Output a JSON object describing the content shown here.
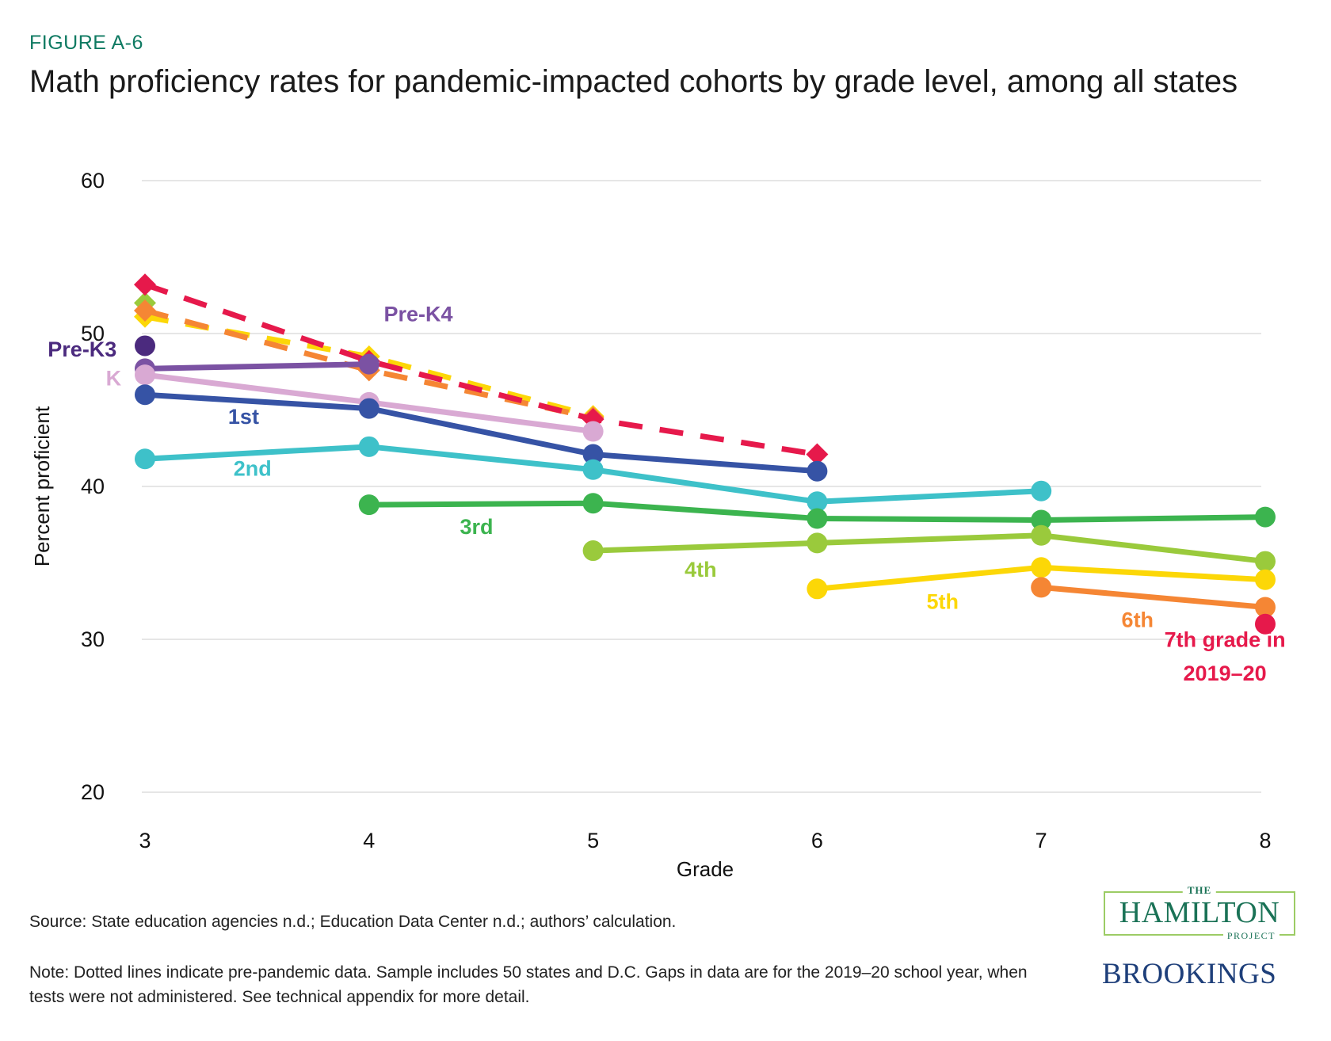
{
  "figure_label": "FIGURE A-6",
  "title": "Math proficiency rates for pandemic-impacted cohorts by grade level, among all states",
  "source": "Source: State education agencies n.d.; Education Data Center n.d.; authors’ calculation.",
  "note": "Note: Dotted lines indicate pre-pandemic data. Sample includes 50 states and D.C. Gaps in data are for the 2019–20 school year, when tests were not administered. See technical appendix for more detail.",
  "logos": {
    "hamilton_the": "THE",
    "hamilton_name": "HAMILTON",
    "hamilton_project": "PROJECT",
    "brookings": "BROOKINGS"
  },
  "chart_data": {
    "type": "line",
    "title": "Math proficiency rates for pandemic-impacted cohorts by grade level, among all states",
    "xlabel": "Grade",
    "ylabel": "Percent proficient",
    "x": [
      3,
      4,
      5,
      6,
      7,
      8
    ],
    "xticks": [
      "3",
      "4",
      "5",
      "6",
      "7",
      "8"
    ],
    "yticks": [
      "20",
      "30",
      "40",
      "50",
      "60"
    ],
    "ylim": [
      20,
      60
    ],
    "xlim": [
      3,
      8
    ],
    "grid": "horizontal",
    "series": [
      {
        "name": "Pre-K3",
        "label": "Pre-K3",
        "color": "#4b2a7e",
        "style": "solid",
        "marker": "circle",
        "points": [
          {
            "x": 3,
            "y": 49.2
          }
        ]
      },
      {
        "name": "Pre-K4",
        "label": "Pre-K4",
        "color": "#7b52a3",
        "style": "solid",
        "marker": "circle",
        "points": [
          {
            "x": 3,
            "y": 47.7
          },
          {
            "x": 4,
            "y": 48.0
          }
        ]
      },
      {
        "name": "K",
        "label": "K",
        "color": "#d9a9d3",
        "style": "solid",
        "marker": "circle",
        "points": [
          {
            "x": 3,
            "y": 47.3
          },
          {
            "x": 4,
            "y": 45.5
          },
          {
            "x": 5,
            "y": 43.6
          }
        ]
      },
      {
        "name": "1st",
        "label": "1st",
        "color": "#3653a5",
        "style": "solid",
        "marker": "circle",
        "points": [
          {
            "x": 3,
            "y": 46.0
          },
          {
            "x": 4,
            "y": 45.1
          },
          {
            "x": 5,
            "y": 42.1
          },
          {
            "x": 6,
            "y": 41.0
          }
        ]
      },
      {
        "name": "2nd",
        "label": "2nd",
        "color": "#3ec1c9",
        "style": "solid",
        "marker": "circle",
        "points": [
          {
            "x": 3,
            "y": 41.8
          },
          {
            "x": 4,
            "y": 42.6
          },
          {
            "x": 5,
            "y": 41.1
          },
          {
            "x": 6,
            "y": 39.0
          },
          {
            "x": 7,
            "y": 39.7
          }
        ]
      },
      {
        "name": "3rd",
        "label": "3rd",
        "color": "#3cb44f",
        "style": "solid",
        "marker": "circle",
        "points": [
          {
            "x": 4,
            "y": 38.8
          },
          {
            "x": 5,
            "y": 38.9
          },
          {
            "x": 6,
            "y": 37.9
          },
          {
            "x": 7,
            "y": 37.8
          },
          {
            "x": 8,
            "y": 38.0
          }
        ]
      },
      {
        "name": "4th",
        "label": "4th",
        "color": "#9aca3c",
        "style": "solid",
        "marker": "circle",
        "points": [
          {
            "x": 5,
            "y": 35.8
          },
          {
            "x": 6,
            "y": 36.3
          },
          {
            "x": 7,
            "y": 36.8
          },
          {
            "x": 8,
            "y": 35.1
          }
        ]
      },
      {
        "name": "5th",
        "label": "5th",
        "color": "#fcd707",
        "style": "solid",
        "marker": "circle",
        "points": [
          {
            "x": 6,
            "y": 33.3
          },
          {
            "x": 7,
            "y": 34.7
          },
          {
            "x": 8,
            "y": 33.9
          }
        ]
      },
      {
        "name": "6th",
        "label": "6th",
        "color": "#f58634",
        "style": "solid",
        "marker": "circle",
        "points": [
          {
            "x": 7,
            "y": 33.4
          },
          {
            "x": 8,
            "y": 32.1
          }
        ]
      },
      {
        "name": "7th grade in 2019-20",
        "label": "7th grade in 2019–20",
        "color": "#e6194b",
        "style": "solid",
        "marker": "circle",
        "points": [
          {
            "x": 8,
            "y": 31.0
          }
        ]
      },
      {
        "name": "4th pre-pandemic",
        "label": "",
        "color": "#9aca3c",
        "style": "dashed",
        "marker": "diamond",
        "points": [
          {
            "x": 3,
            "y": 52.0
          }
        ]
      },
      {
        "name": "5th pre-pandemic",
        "label": "",
        "color": "#fcd707",
        "style": "dashed",
        "marker": "diamond",
        "points": [
          {
            "x": 3,
            "y": 51.1
          },
          {
            "x": 4,
            "y": 48.5
          },
          {
            "x": 5,
            "y": 44.6
          }
        ]
      },
      {
        "name": "6th pre-pandemic",
        "label": "",
        "color": "#f58634",
        "style": "dashed",
        "marker": "diamond",
        "points": [
          {
            "x": 3,
            "y": 51.5
          },
          {
            "x": 4,
            "y": 47.6
          },
          {
            "x": 5,
            "y": 44.5
          }
        ]
      },
      {
        "name": "7th pre-pandemic",
        "label": "",
        "color": "#e6194b",
        "style": "dashed",
        "marker": "diamond",
        "points": [
          {
            "x": 3,
            "y": 53.2
          },
          {
            "x": 4,
            "y": 48.2
          },
          {
            "x": 5,
            "y": 44.4
          },
          {
            "x": 6,
            "y": 42.1
          }
        ]
      }
    ],
    "annotations": [
      {
        "text": "Pre-K3",
        "color": "#4b2a7e",
        "x": 2.72,
        "y": 48.5,
        "anchor": "middle"
      },
      {
        "text": "Pre-K4",
        "color": "#7b52a3",
        "x": 4.22,
        "y": 50.8,
        "anchor": "middle"
      },
      {
        "text": "K",
        "color": "#d9a9d3",
        "x": 2.86,
        "y": 46.6,
        "anchor": "middle"
      },
      {
        "text": "1st",
        "color": "#3653a5",
        "x": 3.44,
        "y": 44.1,
        "anchor": "middle"
      },
      {
        "text": "2nd",
        "color": "#3ec1c9",
        "x": 3.48,
        "y": 40.7,
        "anchor": "middle"
      },
      {
        "text": "3rd",
        "color": "#3cb44f",
        "x": 4.48,
        "y": 36.9,
        "anchor": "middle"
      },
      {
        "text": "4th",
        "color": "#9aca3c",
        "x": 5.48,
        "y": 34.1,
        "anchor": "middle"
      },
      {
        "text": "5th",
        "color": "#fcd707",
        "x": 6.56,
        "y": 32.0,
        "anchor": "middle"
      },
      {
        "text": "6th",
        "color": "#f58634",
        "x": 7.43,
        "y": 30.8,
        "anchor": "middle"
      },
      {
        "text": "7th grade in",
        "color": "#e6194b",
        "x": 7.82,
        "y": 29.5,
        "anchor": "middle"
      },
      {
        "text": "2019–20",
        "color": "#e6194b",
        "x": 7.82,
        "y": 27.3,
        "anchor": "middle"
      }
    ],
    "legend": "none (direct labels)"
  }
}
